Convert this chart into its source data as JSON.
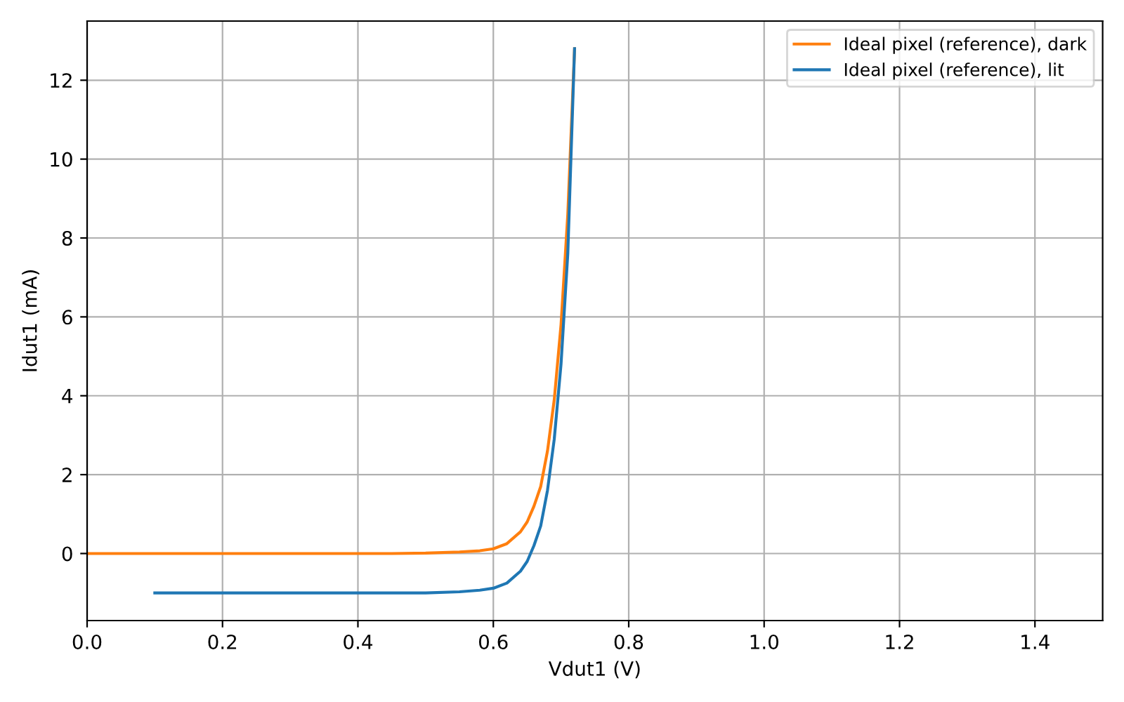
{
  "chart_data": {
    "type": "line",
    "xlabel": "Vdut1 (V)",
    "ylabel": "Idut1 (mA)",
    "xlim": [
      0,
      1.5
    ],
    "xticks": [
      {
        "value": 0,
        "label": "0.0"
      },
      0.2,
      0.4,
      0.6,
      0.8,
      {
        "value": 1,
        "label": "1.0"
      },
      1.2,
      1.4
    ],
    "ylim": [
      -1.7,
      13.5
    ],
    "yticks": [
      0,
      2,
      4,
      6,
      8,
      10,
      12
    ],
    "grid": true,
    "legend": "top right",
    "marker": "none",
    "line_style": "solid",
    "series": [
      {
        "name": "Ideal pixel (reference), dark",
        "color": "#ff7f0e",
        "x": [
          0,
          0.1,
          0.2,
          0.3,
          0.4,
          0.45,
          0.5,
          0.55,
          0.58,
          0.6,
          0.62,
          0.64,
          0.65,
          0.66,
          0.67,
          0.68,
          0.69,
          0.7,
          0.71,
          0.72
        ],
        "values": [
          0,
          0,
          0,
          0,
          0,
          0,
          0.01,
          0.04,
          0.07,
          0.12,
          0.25,
          0.55,
          0.8,
          1.2,
          1.7,
          2.6,
          3.9,
          5.8,
          8.6,
          12.8
        ]
      },
      {
        "name": "Ideal pixel (reference), lit",
        "color": "#1f77b4",
        "x": [
          0.1,
          0.2,
          0.3,
          0.4,
          0.5,
          0.55,
          0.58,
          0.6,
          0.62,
          0.64,
          0.65,
          0.66,
          0.67,
          0.68,
          0.69,
          0.7,
          0.71,
          0.72
        ],
        "values": [
          -1,
          -1,
          -1,
          -1,
          -1,
          -0.97,
          -0.93,
          -0.88,
          -0.75,
          -0.45,
          -0.2,
          0.2,
          0.7,
          1.6,
          2.9,
          4.8,
          7.6,
          12.8
        ]
      }
    ]
  }
}
